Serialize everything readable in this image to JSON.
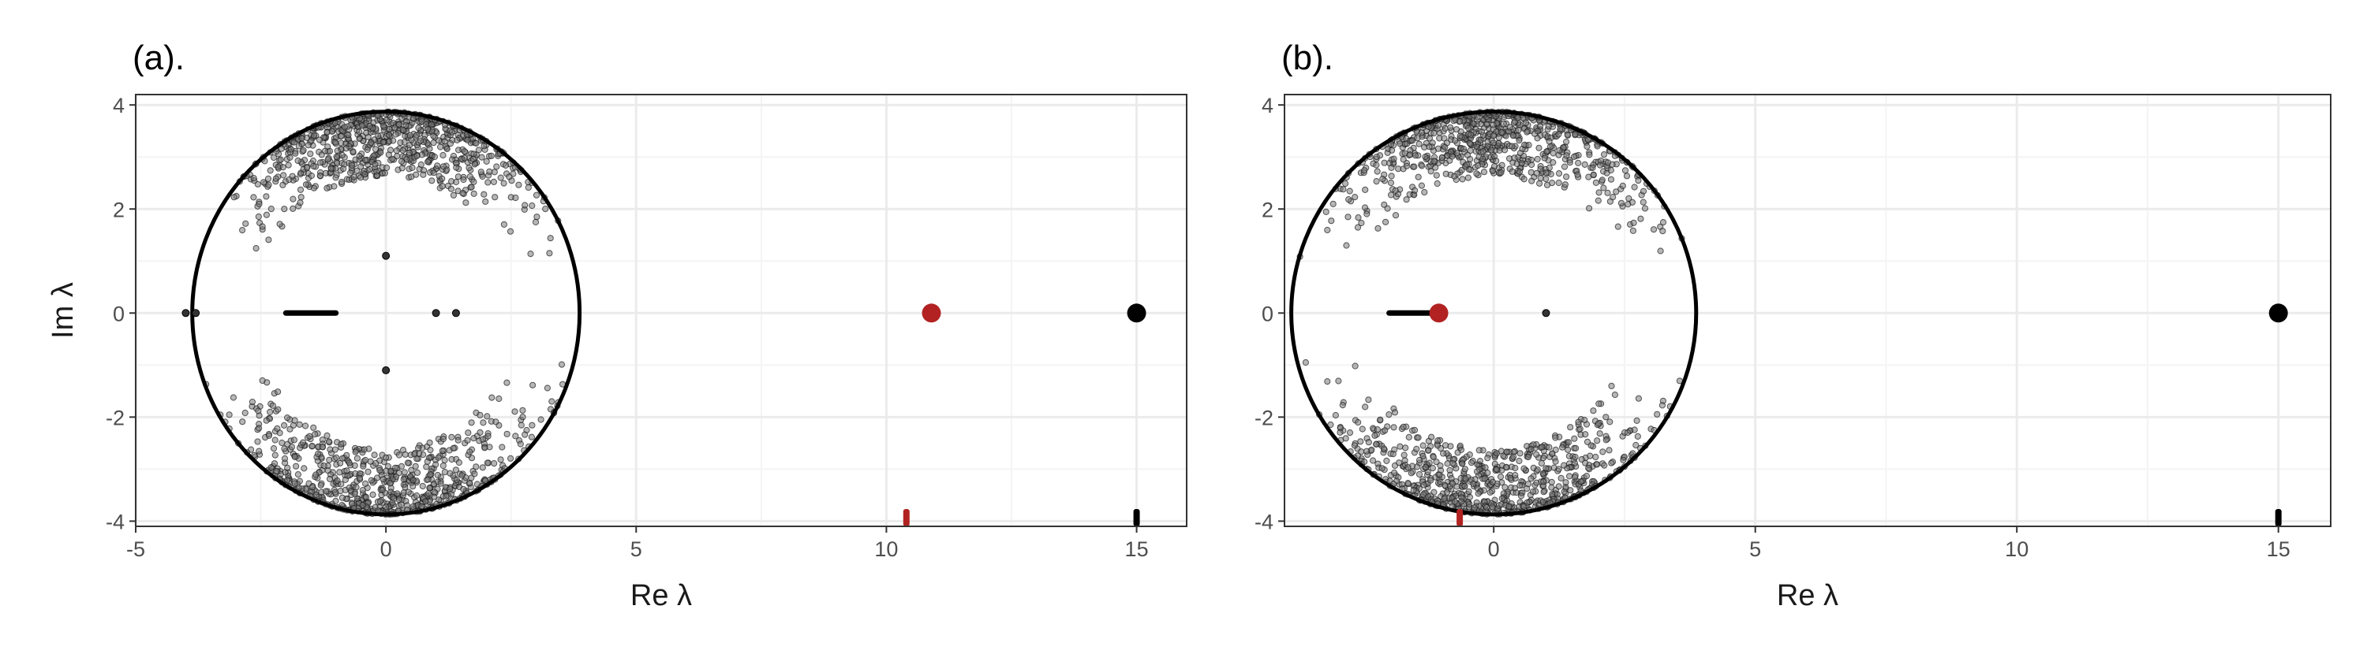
{
  "figure": {
    "xlabel": "Re λ",
    "ylabel": "Im λ"
  },
  "colors": {
    "background": "#ffffff",
    "panel_border": "#333333",
    "grid_major": "#ebebeb",
    "grid_minor": "#f4f4f4",
    "points": "#000000",
    "highlight": "#b22222"
  },
  "chart_data": [
    {
      "type": "scatter",
      "title": "(a).",
      "xlabel": "Re λ",
      "ylabel": "Im λ",
      "xlim": [
        -5,
        16
      ],
      "ylim": [
        -4.1,
        4.2
      ],
      "x_ticks": [
        -5,
        0,
        5,
        10,
        15
      ],
      "x_tick_labels": [
        "-5",
        "0",
        "5",
        "10",
        "15"
      ],
      "y_ticks": [
        -4,
        -2,
        0,
        2,
        4
      ],
      "y_tick_labels": [
        "-4",
        "-2",
        "0",
        "2",
        "4"
      ],
      "grid": true,
      "circle": {
        "center": [
          0,
          0
        ],
        "radius": 3.87
      },
      "bulk_eigenvalues": {
        "description_count": 1500,
        "region": "near circle boundary, mostly upper and lower caps",
        "cloud_seed": 7
      },
      "real_segment": {
        "x_from": -2.0,
        "x_to": -1.0,
        "y": 0
      },
      "isolated_points": [
        {
          "x": 0,
          "y": 1.1
        },
        {
          "x": 0,
          "y": -1.1
        },
        {
          "x": 1.0,
          "y": 0
        },
        {
          "x": 1.4,
          "y": 0
        },
        {
          "x": -4.0,
          "y": 0
        },
        {
          "x": -3.8,
          "y": 0
        }
      ],
      "outlier_black": {
        "x": 15.0,
        "y": 0
      },
      "outlier_red": {
        "x": 10.9,
        "y": 0
      },
      "rug_black_x": 15.0,
      "rug_red_x": 10.4
    },
    {
      "type": "scatter",
      "title": "(b).",
      "xlabel": "Re λ",
      "ylabel": "Im λ",
      "xlim": [
        -4.0,
        16.0
      ],
      "ylim": [
        -4.1,
        4.2
      ],
      "x_ticks": [
        0,
        5,
        10,
        15
      ],
      "x_tick_labels": [
        "0",
        "5",
        "10",
        "15"
      ],
      "y_ticks": [
        -4,
        -2,
        0,
        2,
        4
      ],
      "y_tick_labels": [
        "-4",
        "-2",
        "0",
        "2",
        "4"
      ],
      "grid": true,
      "circle": {
        "center": [
          0,
          0
        ],
        "radius": 3.87
      },
      "bulk_eigenvalues": {
        "description_count": 1500,
        "region": "near circle boundary, mostly upper and lower caps",
        "cloud_seed": 11
      },
      "real_segment": {
        "x_from": -2.0,
        "x_to": -1.0,
        "y": 0
      },
      "isolated_points": [
        {
          "x": 1.0,
          "y": 0
        }
      ],
      "outlier_black": {
        "x": 15.0,
        "y": 0
      },
      "outlier_red": {
        "x": -1.05,
        "y": 0
      },
      "rug_black_x": 15.0,
      "rug_red_x": -0.65
    }
  ]
}
